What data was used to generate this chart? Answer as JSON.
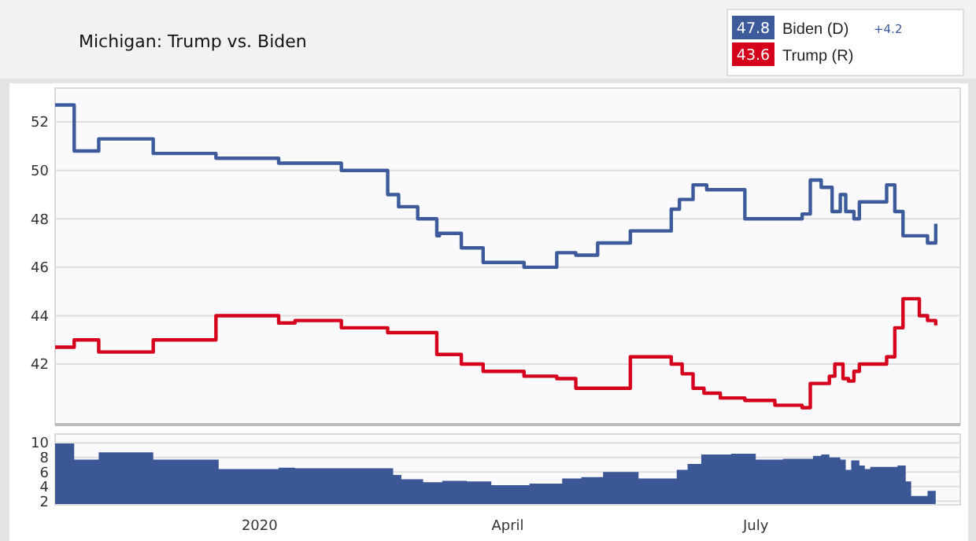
{
  "chart_data": [
    {
      "type": "step",
      "title": "Michigan: Trump vs. Biden",
      "xlim": [
        "2019-10-18",
        "2020-09-14"
      ],
      "ylim": [
        39.5,
        53.4
      ],
      "yticks": [
        42,
        44,
        46,
        48,
        50,
        52
      ],
      "grid": "y",
      "legend": "top right",
      "tick_labels": "y",
      "annotations": [
        "47.8",
        "43.6",
        "+4.2"
      ],
      "series": [
        {
          "name": "Biden (D)",
          "color": "#3d5a9b",
          "x": [
            "2019-10-18",
            "2019-10-25",
            "2019-11-03",
            "2019-11-23",
            "2019-12-16",
            "2020-01-08",
            "2020-01-31",
            "2020-02-17",
            "2020-02-21",
            "2020-02-28",
            "2020-03-06",
            "2020-03-07",
            "2020-03-15",
            "2020-03-23",
            "2020-04-07",
            "2020-04-19",
            "2020-04-26",
            "2020-05-04",
            "2020-05-16",
            "2020-05-31",
            "2020-06-03",
            "2020-06-08",
            "2020-06-13",
            "2020-06-27",
            "2020-07-18",
            "2020-07-21",
            "2020-07-25",
            "2020-07-29",
            "2020-08-01",
            "2020-08-03",
            "2020-08-06",
            "2020-08-08",
            "2020-08-18",
            "2020-08-21",
            "2020-08-24",
            "2020-09-02",
            "2020-09-05"
          ],
          "values": [
            52.7,
            50.8,
            51.3,
            50.7,
            50.5,
            50.3,
            50.0,
            49.0,
            48.5,
            48.0,
            47.3,
            47.4,
            46.8,
            46.2,
            46.0,
            46.6,
            46.5,
            47.0,
            47.5,
            48.4,
            48.8,
            49.4,
            49.2,
            48.0,
            48.2,
            49.6,
            49.3,
            48.3,
            49.0,
            48.3,
            48.0,
            48.7,
            49.4,
            48.3,
            47.3,
            47.0,
            47.8
          ]
        },
        {
          "name": "Trump (R)",
          "color": "#d5001c",
          "x": [
            "2019-10-18",
            "2019-10-25",
            "2019-11-03",
            "2019-11-23",
            "2019-12-16",
            "2020-01-08",
            "2020-01-14",
            "2020-01-31",
            "2020-02-17",
            "2020-03-06",
            "2020-03-15",
            "2020-03-23",
            "2020-04-07",
            "2020-04-19",
            "2020-04-26",
            "2020-05-16",
            "2020-05-31",
            "2020-06-04",
            "2020-06-08",
            "2020-06-12",
            "2020-06-18",
            "2020-06-27",
            "2020-07-08",
            "2020-07-18",
            "2020-07-21",
            "2020-07-28",
            "2020-07-30",
            "2020-08-02",
            "2020-08-04",
            "2020-08-06",
            "2020-08-08",
            "2020-08-18",
            "2020-08-21",
            "2020-08-24",
            "2020-08-30",
            "2020-09-02",
            "2020-09-05"
          ],
          "values": [
            42.7,
            43.0,
            42.5,
            43.0,
            44.0,
            43.7,
            43.8,
            43.5,
            43.3,
            42.4,
            42.0,
            41.7,
            41.5,
            41.4,
            41.0,
            42.3,
            42.0,
            41.6,
            41.0,
            40.8,
            40.6,
            40.5,
            40.3,
            40.2,
            41.2,
            41.5,
            42.0,
            41.4,
            41.3,
            41.7,
            42.0,
            42.3,
            43.5,
            44.7,
            44.0,
            43.8,
            43.6
          ]
        }
      ]
    },
    {
      "type": "area",
      "xlim": [
        "2019-10-18",
        "2020-09-14"
      ],
      "ylim": [
        1.5,
        11.2
      ],
      "yticks": [
        2,
        4,
        6,
        8,
        10
      ],
      "grid": "y",
      "xticks": [
        {
          "value": "2020-01-01",
          "label": "2020"
        },
        {
          "value": "2020-04-01",
          "label": "April"
        },
        {
          "value": "2020-07-01",
          "label": "July"
        }
      ],
      "series": [
        {
          "color": "#3b5796",
          "x": [
            "2019-10-18",
            "2019-10-25",
            "2019-11-03",
            "2019-11-23",
            "2019-12-17",
            "2020-01-08",
            "2020-01-14",
            "2020-02-19",
            "2020-02-22",
            "2020-03-01",
            "2020-03-08",
            "2020-03-17",
            "2020-03-26",
            "2020-04-09",
            "2020-04-21",
            "2020-04-28",
            "2020-05-06",
            "2020-05-19",
            "2020-06-02",
            "2020-06-06",
            "2020-06-11",
            "2020-06-22",
            "2020-07-01",
            "2020-07-11",
            "2020-07-22",
            "2020-07-25",
            "2020-07-28",
            "2020-08-01",
            "2020-08-03",
            "2020-08-05",
            "2020-08-08",
            "2020-08-10",
            "2020-08-12",
            "2020-08-22",
            "2020-08-25",
            "2020-08-27",
            "2020-09-02",
            "2020-09-05"
          ],
          "values": [
            9.9,
            7.7,
            8.7,
            7.7,
            6.4,
            6.6,
            6.5,
            5.6,
            5.0,
            4.6,
            4.8,
            4.7,
            4.2,
            4.4,
            5.1,
            5.3,
            6.0,
            5.1,
            6.3,
            7.1,
            8.4,
            8.5,
            7.7,
            7.8,
            8.2,
            8.4,
            8.0,
            7.7,
            6.3,
            7.6,
            6.9,
            6.4,
            6.7,
            6.9,
            4.7,
            2.7,
            3.4,
            4.2
          ]
        }
      ]
    }
  ]
}
